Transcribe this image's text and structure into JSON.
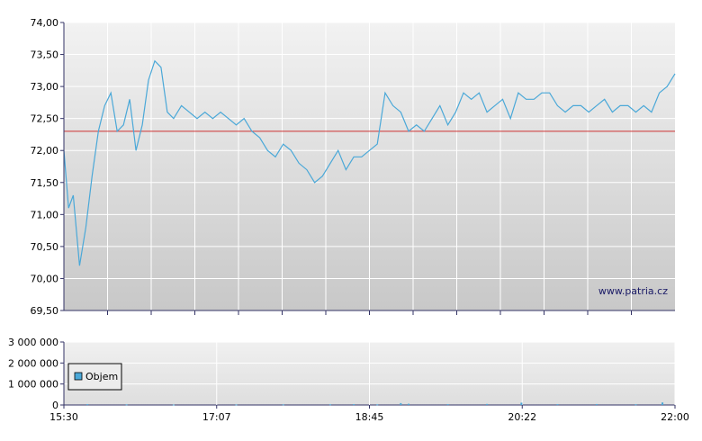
{
  "chart_data": [
    {
      "type": "line",
      "xlabel": "",
      "ylabel": "",
      "ylim": [
        69.5,
        74.0
      ],
      "y_ticks": [
        "74,00",
        "73,50",
        "73,00",
        "72,50",
        "72,00",
        "71,50",
        "71,00",
        "70,50",
        "70,00",
        "69,50"
      ],
      "grid": true,
      "background": "gradient light gray",
      "line_color": "#4aa8d8",
      "reference_line": {
        "value": 72.3,
        "color": "#cc3333"
      },
      "watermark": "www.patria.cz",
      "series": [
        {
          "x": [
            "15:30",
            "15:33",
            "15:36",
            "15:40",
            "15:44",
            "15:48",
            "15:52",
            "15:56",
            "16:00",
            "16:04",
            "16:08",
            "16:12",
            "16:16",
            "16:20",
            "16:24",
            "16:28",
            "16:32",
            "16:36",
            "16:40",
            "16:45",
            "16:50",
            "16:55",
            "17:00",
            "17:05",
            "17:10",
            "17:15",
            "17:20",
            "17:25",
            "17:30",
            "17:35",
            "17:40",
            "17:45",
            "17:50",
            "17:55",
            "18:00",
            "18:05",
            "18:10",
            "18:15",
            "18:20",
            "18:25",
            "18:30",
            "18:35",
            "18:40",
            "18:45",
            "18:50",
            "18:55",
            "19:00",
            "19:05",
            "19:10",
            "19:15",
            "19:20",
            "19:25",
            "19:30",
            "19:35",
            "19:40",
            "19:45",
            "19:50",
            "19:55",
            "20:00",
            "20:05",
            "20:10",
            "20:15",
            "20:20",
            "20:25",
            "20:30",
            "20:35",
            "20:40",
            "20:45",
            "20:50",
            "20:55",
            "21:00",
            "21:05",
            "21:10",
            "21:15",
            "21:20",
            "21:25",
            "21:30",
            "21:35",
            "21:40",
            "21:45",
            "21:50",
            "21:55",
            "22:00"
          ],
          "values": [
            72.0,
            71.1,
            71.3,
            70.2,
            70.8,
            71.6,
            72.3,
            72.7,
            72.9,
            72.3,
            72.4,
            72.8,
            72.0,
            72.4,
            73.1,
            73.4,
            73.3,
            72.6,
            72.5,
            72.7,
            72.6,
            72.5,
            72.6,
            72.5,
            72.6,
            72.5,
            72.4,
            72.5,
            72.3,
            72.2,
            72.0,
            71.9,
            72.1,
            72.0,
            71.8,
            71.7,
            71.5,
            71.6,
            71.8,
            72.0,
            71.7,
            71.9,
            71.9,
            72.0,
            72.1,
            72.9,
            72.7,
            72.6,
            72.3,
            72.4,
            72.3,
            72.5,
            72.7,
            72.4,
            72.6,
            72.9,
            72.8,
            72.9,
            72.6,
            72.7,
            72.8,
            72.5,
            72.9,
            72.8,
            72.8,
            72.9,
            72.9,
            72.7,
            72.6,
            72.7,
            72.7,
            72.6,
            72.7,
            72.8,
            72.6,
            72.7,
            72.7,
            72.6,
            72.7,
            72.6,
            72.9,
            73.0,
            73.2
          ]
        }
      ]
    },
    {
      "type": "bar",
      "xlabel": "",
      "ylabel": "",
      "ylim": [
        0,
        3000000
      ],
      "y_ticks": [
        "3 000 000",
        "2 000 000",
        "1 000 000",
        "0"
      ],
      "x_ticks": [
        "15:30",
        "17:07",
        "18:45",
        "20:22",
        "22:00"
      ],
      "grid": true,
      "legend": {
        "position": "left",
        "entries": [
          "Objem"
        ]
      },
      "bar_color": "#4aa8d8",
      "series": [
        {
          "name": "Objem",
          "x": [
            "15:45",
            "16:10",
            "16:40",
            "17:20",
            "17:50",
            "18:20",
            "18:35",
            "18:50",
            "19:05",
            "19:10",
            "19:35",
            "20:00",
            "20:22",
            "20:45",
            "21:10",
            "21:35",
            "21:52"
          ],
          "values": [
            40000,
            30000,
            20000,
            25000,
            30000,
            35000,
            40000,
            30000,
            90000,
            60000,
            40000,
            50000,
            110000,
            40000,
            45000,
            35000,
            120000
          ]
        }
      ]
    }
  ]
}
